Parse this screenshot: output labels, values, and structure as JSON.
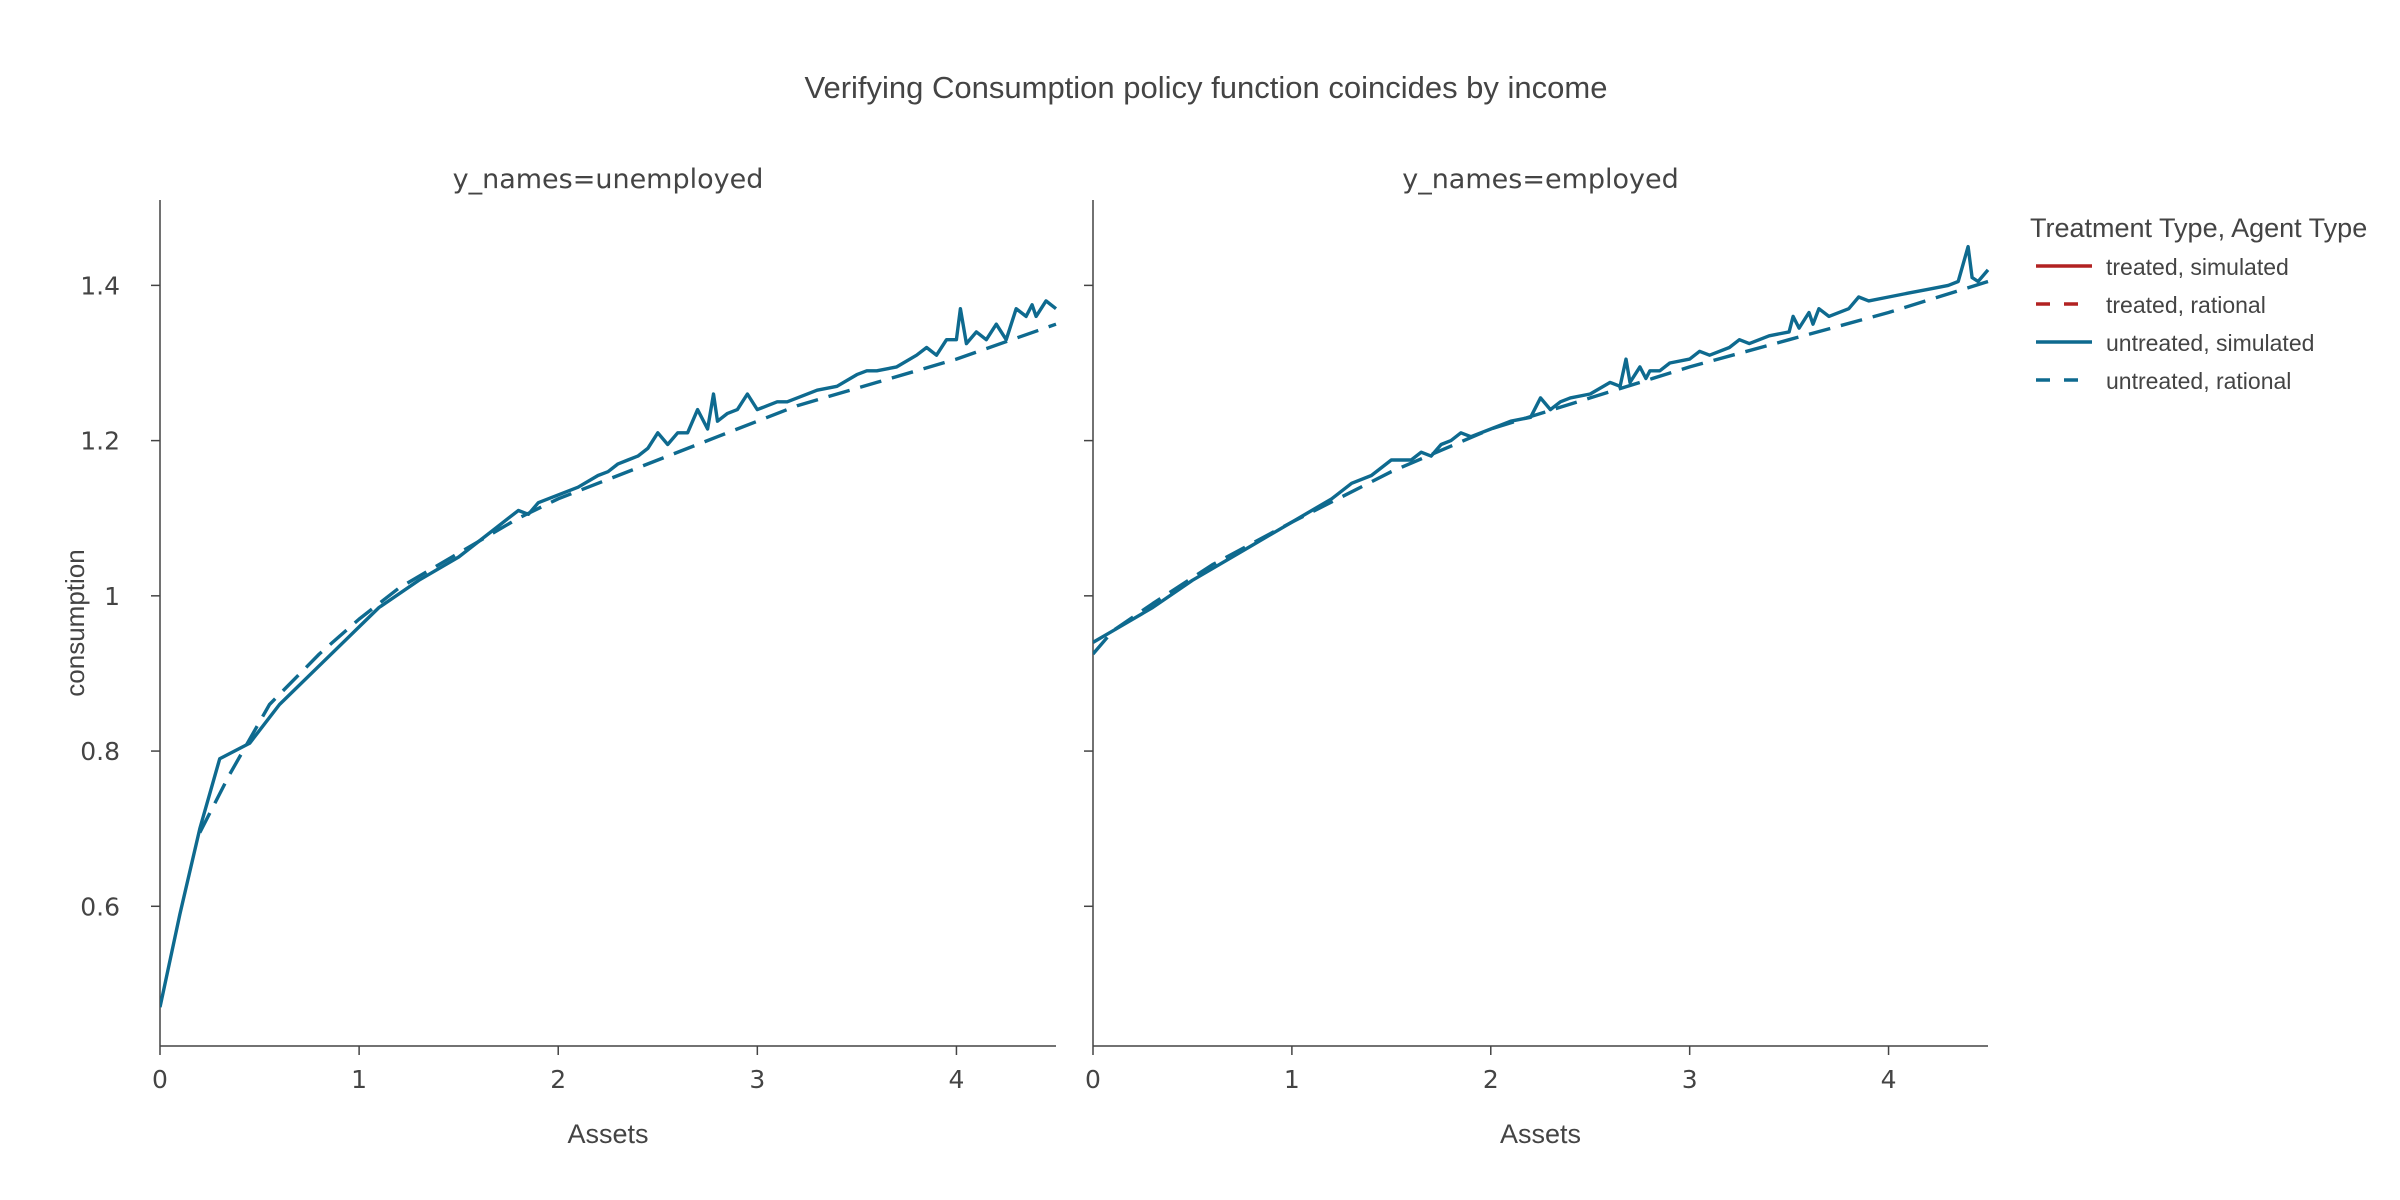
{
  "chart_data": {
    "type": "line",
    "title": "Verifying Consumption policy function coincides by income",
    "ylabel": "consumption",
    "shared_y": true,
    "ylim": [
      0.42,
      1.51
    ],
    "yticks": [
      0.6,
      0.8,
      1,
      1.2,
      1.4
    ],
    "ytick_labels": [
      "0.6",
      "0.8",
      "1",
      "1.2",
      "1.4"
    ],
    "legend": {
      "title": "Treatment Type, Agent Type",
      "position": "right",
      "entries": [
        {
          "label": "treated, simulated",
          "color": "#b22222",
          "dash": "solid"
        },
        {
          "label": "treated, rational",
          "color": "#b22222",
          "dash": "dash"
        },
        {
          "label": "untreated, simulated",
          "color": "#0e6a8f",
          "dash": "solid"
        },
        {
          "label": "untreated, rational",
          "color": "#0e6a8f",
          "dash": "dash"
        }
      ]
    },
    "panels": [
      {
        "title": "y_names=unemployed",
        "xlabel": "Assets",
        "xlim": [
          0,
          4.5
        ],
        "xticks": [
          0,
          1,
          2,
          3,
          4
        ],
        "xtick_labels": [
          "0",
          "1",
          "2",
          "3",
          "4"
        ],
        "series": [
          {
            "name": "untreated, simulated",
            "dash": "solid",
            "color": "#0e6a8f",
            "x": [
              0,
              0.1,
              0.2,
              0.3,
              0.45,
              0.6,
              0.8,
              1.0,
              1.1,
              1.3,
              1.5,
              1.6,
              1.7,
              1.75,
              1.8,
              1.85,
              1.9,
              2.0,
              2.1,
              2.2,
              2.25,
              2.3,
              2.35,
              2.4,
              2.45,
              2.5,
              2.55,
              2.6,
              2.65,
              2.7,
              2.75,
              2.78,
              2.8,
              2.85,
              2.9,
              2.95,
              3.0,
              3.05,
              3.1,
              3.15,
              3.2,
              3.3,
              3.4,
              3.5,
              3.55,
              3.6,
              3.7,
              3.8,
              3.85,
              3.9,
              3.95,
              4.0,
              4.02,
              4.05,
              4.1,
              4.15,
              4.2,
              4.25,
              4.3,
              4.35,
              4.38,
              4.4,
              4.45,
              4.5
            ],
            "y": [
              0.47,
              0.59,
              0.7,
              0.79,
              0.81,
              0.86,
              0.91,
              0.96,
              0.985,
              1.02,
              1.05,
              1.07,
              1.09,
              1.1,
              1.11,
              1.105,
              1.12,
              1.13,
              1.14,
              1.155,
              1.16,
              1.17,
              1.175,
              1.18,
              1.19,
              1.21,
              1.195,
              1.21,
              1.21,
              1.24,
              1.215,
              1.26,
              1.225,
              1.235,
              1.24,
              1.26,
              1.24,
              1.245,
              1.25,
              1.25,
              1.255,
              1.265,
              1.27,
              1.285,
              1.29,
              1.29,
              1.295,
              1.31,
              1.32,
              1.31,
              1.33,
              1.33,
              1.37,
              1.325,
              1.34,
              1.33,
              1.35,
              1.33,
              1.37,
              1.36,
              1.375,
              1.36,
              1.38,
              1.37
            ]
          },
          {
            "name": "untreated, rational",
            "dash": "dash",
            "color": "#0e6a8f",
            "x": [
              0.2,
              0.35,
              0.55,
              0.8,
              1.0,
              1.2,
              1.5,
              1.8,
              2.0,
              2.4,
              2.8,
              3.0,
              3.2,
              3.6,
              4.0,
              4.5
            ],
            "y": [
              0.695,
              0.77,
              0.86,
              0.925,
              0.97,
              1.01,
              1.055,
              1.1,
              1.125,
              1.165,
              1.205,
              1.225,
              1.245,
              1.275,
              1.305,
              1.35
            ]
          }
        ]
      },
      {
        "title": "y_names=employed",
        "xlabel": "Assets",
        "xlim": [
          0,
          4.5
        ],
        "xticks": [
          0,
          1,
          2,
          3,
          4
        ],
        "xtick_labels": [
          "0",
          "1",
          "2",
          "3",
          "4"
        ],
        "series": [
          {
            "name": "untreated, simulated",
            "dash": "solid",
            "color": "#0e6a8f",
            "x": [
              0,
              0.1,
              0.3,
              0.5,
              0.8,
              1.0,
              1.2,
              1.3,
              1.4,
              1.5,
              1.6,
              1.65,
              1.7,
              1.75,
              1.8,
              1.85,
              1.9,
              2.0,
              2.1,
              2.2,
              2.25,
              2.3,
              2.35,
              2.4,
              2.5,
              2.6,
              2.65,
              2.68,
              2.7,
              2.75,
              2.78,
              2.8,
              2.85,
              2.9,
              3.0,
              3.05,
              3.1,
              3.2,
              3.25,
              3.3,
              3.4,
              3.5,
              3.52,
              3.55,
              3.6,
              3.62,
              3.65,
              3.7,
              3.8,
              3.85,
              3.9,
              4.0,
              4.1,
              4.2,
              4.3,
              4.35,
              4.4,
              4.42,
              4.45,
              4.5
            ],
            "y": [
              0.94,
              0.955,
              0.985,
              1.02,
              1.065,
              1.095,
              1.125,
              1.145,
              1.155,
              1.175,
              1.175,
              1.185,
              1.18,
              1.195,
              1.2,
              1.21,
              1.205,
              1.215,
              1.225,
              1.23,
              1.255,
              1.24,
              1.25,
              1.255,
              1.26,
              1.275,
              1.27,
              1.305,
              1.275,
              1.295,
              1.28,
              1.29,
              1.29,
              1.3,
              1.305,
              1.315,
              1.31,
              1.32,
              1.33,
              1.325,
              1.335,
              1.34,
              1.36,
              1.345,
              1.365,
              1.35,
              1.37,
              1.36,
              1.37,
              1.385,
              1.38,
              1.385,
              1.39,
              1.395,
              1.4,
              1.405,
              1.45,
              1.41,
              1.405,
              1.42
            ]
          },
          {
            "name": "untreated, rational",
            "dash": "dash",
            "color": "#0e6a8f",
            "x": [
              0,
              0.1,
              0.3,
              0.6,
              1.0,
              1.5,
              2.0,
              2.5,
              3.0,
              3.5,
              4.0,
              4.5
            ],
            "y": [
              0.925,
              0.955,
              0.99,
              1.04,
              1.095,
              1.16,
              1.215,
              1.255,
              1.295,
              1.33,
              1.365,
              1.405
            ]
          }
        ]
      }
    ]
  }
}
